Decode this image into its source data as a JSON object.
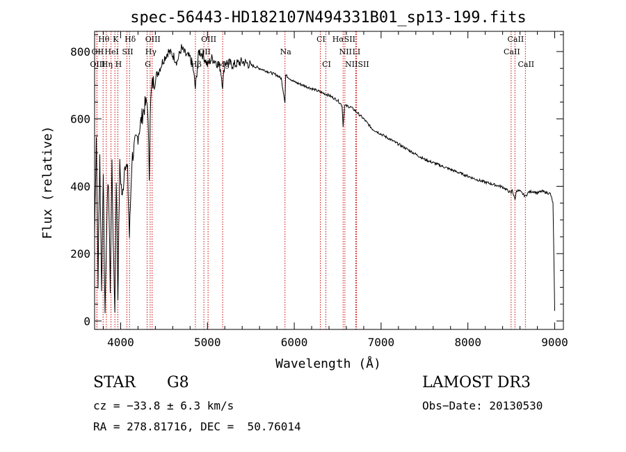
{
  "chart_data": {
    "type": "line",
    "title": "spec-56443-HD182107N494331B01_sp13-199.fits",
    "xlabel": "Wavelength (Å)",
    "ylabel": "Flux (relative)",
    "xlim": [
      3700,
      9100
    ],
    "ylim": [
      -25,
      860
    ],
    "x_ticks": [
      4000,
      5000,
      6000,
      7000,
      8000,
      9000
    ],
    "x_tick_labels": [
      "4000",
      "5000",
      "6000",
      "7000",
      "8000",
      "9000"
    ],
    "y_ticks": [
      0,
      200,
      400,
      600,
      800
    ],
    "y_tick_labels": [
      "0",
      "200",
      "400",
      "600",
      "800"
    ],
    "grid": false,
    "series": [
      {
        "name": "spectrum",
        "x": [
          3700,
          3720,
          3740,
          3760,
          3780,
          3800,
          3820,
          3840,
          3860,
          3880,
          3900,
          3920,
          3933,
          3950,
          3968,
          3990,
          4020,
          4050,
          4080,
          4101,
          4130,
          4160,
          4200,
          4240,
          4280,
          4310,
          4330,
          4340,
          4360,
          4400,
          4450,
          4500,
          4550,
          4600,
          4650,
          4700,
          4750,
          4800,
          4830,
          4861,
          4900,
          4950,
          5000,
          5050,
          5100,
          5150,
          5175,
          5200,
          5300,
          5400,
          5500,
          5600,
          5700,
          5800,
          5850,
          5893,
          5900,
          5950,
          6000,
          6100,
          6200,
          6300,
          6400,
          6500,
          6550,
          6563,
          6580,
          6650,
          6700,
          6800,
          6900,
          7000,
          7100,
          7200,
          7300,
          7400,
          7500,
          7600,
          7700,
          7800,
          7900,
          8000,
          8100,
          8200,
          8300,
          8400,
          8498,
          8510,
          8542,
          8560,
          8600,
          8662,
          8700,
          8750,
          8800,
          8850,
          8900,
          8950,
          8980,
          9000
        ],
        "y": [
          250,
          560,
          120,
          500,
          80,
          450,
          20,
          300,
          420,
          100,
          470,
          150,
          40,
          430,
          70,
          460,
          360,
          480,
          440,
          250,
          480,
          520,
          550,
          600,
          640,
          650,
          430,
          620,
          700,
          720,
          750,
          780,
          800,
          790,
          770,
          810,
          790,
          780,
          760,
          690,
          800,
          790,
          760,
          780,
          770,
          750,
          700,
          770,
          760,
          770,
          760,
          750,
          740,
          730,
          720,
          650,
          730,
          720,
          710,
          700,
          690,
          680,
          670,
          655,
          640,
          580,
          640,
          635,
          625,
          600,
          570,
          555,
          540,
          525,
          510,
          495,
          480,
          470,
          460,
          450,
          440,
          430,
          420,
          412,
          405,
          398,
          380,
          390,
          360,
          388,
          385,
          370,
          383,
          385,
          380,
          385,
          382,
          378,
          350,
          30
        ]
      }
    ],
    "line_groups": [
      {
        "labels": [
          "Hθ",
          "K",
          "Hδ",
          "OIII",
          "OIII",
          "CI",
          "HαSII",
          "CaII"
        ],
        "x": [
          3798,
          3934,
          4102,
          4363,
          5007,
          6300,
          6563,
          8542
        ]
      },
      {
        "labels": [
          "OII",
          "HeI",
          "SII",
          "Hγ",
          "OII",
          "Na",
          "NII",
          "LI",
          "CaII"
        ],
        "x": [
          3727,
          3889,
          4072,
          4340,
          4959,
          5893,
          6583,
          6708,
          8498
        ]
      },
      {
        "labels": [
          "OIII",
          "Hη",
          "H",
          "G",
          "Hβ",
          "Mg",
          "CI",
          "NIISII",
          "CaII"
        ],
        "x": [
          3727,
          3835,
          3968,
          4305,
          4861,
          5175,
          6364,
          6716,
          8662
        ]
      }
    ]
  },
  "info": {
    "object_type": "STAR",
    "subclass": "G8",
    "survey": "LAMOST DR3",
    "cz": "cz = −33.8 ± 6.3 km/s",
    "obs_date": "Obs−Date: 20130530",
    "coords": "RA = 278.81716, DEC =  50.76014"
  },
  "colors": {
    "spectrum": "#000000",
    "lines": "#cc0000",
    "axes": "#000000"
  }
}
